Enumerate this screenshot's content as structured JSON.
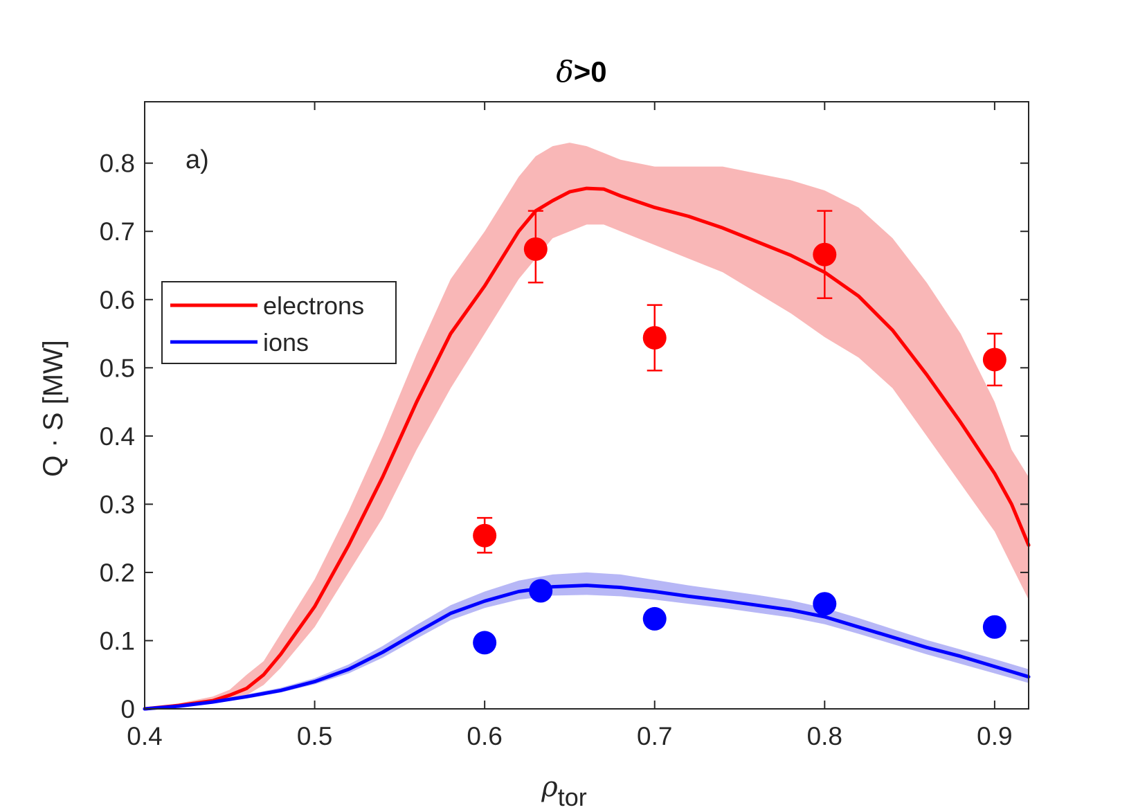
{
  "chart_data": {
    "type": "line",
    "title_symbol": "δ",
    "title_rest": ">0",
    "panel_label": "a)",
    "xlabel_main": "ρ",
    "xlabel_sub": "tor",
    "ylabel": "Q · S [MW]",
    "xlim": [
      0.4,
      0.92
    ],
    "ylim": [
      0,
      0.89
    ],
    "xticks": [
      0.4,
      0.5,
      0.6,
      0.7,
      0.8,
      0.9
    ],
    "xtick_labels": [
      "0.4",
      "0.5",
      "0.6",
      "0.7",
      "0.8",
      "0.9"
    ],
    "yticks": [
      0,
      0.1,
      0.2,
      0.3,
      0.4,
      0.5,
      0.6,
      0.7,
      0.8
    ],
    "ytick_labels": [
      "0",
      "0.1",
      "0.2",
      "0.3",
      "0.4",
      "0.5",
      "0.6",
      "0.7",
      "0.8"
    ],
    "legend_location": "upper-left",
    "series": [
      {
        "name": "electrons",
        "color": "#ff0000",
        "band_color": "#f8aaaa",
        "x": [
          0.4,
          0.42,
          0.44,
          0.45,
          0.46,
          0.47,
          0.48,
          0.5,
          0.52,
          0.54,
          0.56,
          0.58,
          0.6,
          0.62,
          0.63,
          0.64,
          0.65,
          0.66,
          0.67,
          0.68,
          0.7,
          0.72,
          0.74,
          0.76,
          0.78,
          0.8,
          0.82,
          0.84,
          0.86,
          0.88,
          0.9,
          0.91,
          0.92
        ],
        "values": [
          0.0,
          0.005,
          0.012,
          0.02,
          0.03,
          0.05,
          0.08,
          0.15,
          0.24,
          0.34,
          0.45,
          0.55,
          0.62,
          0.7,
          0.73,
          0.745,
          0.758,
          0.763,
          0.762,
          0.752,
          0.735,
          0.722,
          0.705,
          0.685,
          0.665,
          0.64,
          0.605,
          0.555,
          0.49,
          0.42,
          0.345,
          0.3,
          0.24
        ],
        "lower": [
          0.0,
          0.003,
          0.008,
          0.014,
          0.02,
          0.035,
          0.06,
          0.12,
          0.2,
          0.28,
          0.38,
          0.47,
          0.55,
          0.63,
          0.66,
          0.69,
          0.7,
          0.71,
          0.71,
          0.7,
          0.68,
          0.66,
          0.64,
          0.61,
          0.58,
          0.545,
          0.515,
          0.47,
          0.4,
          0.33,
          0.26,
          0.21,
          0.16
        ],
        "upper": [
          0.0,
          0.008,
          0.018,
          0.028,
          0.05,
          0.07,
          0.11,
          0.19,
          0.29,
          0.4,
          0.52,
          0.63,
          0.7,
          0.78,
          0.81,
          0.825,
          0.83,
          0.825,
          0.815,
          0.805,
          0.795,
          0.795,
          0.795,
          0.785,
          0.775,
          0.76,
          0.735,
          0.69,
          0.625,
          0.55,
          0.45,
          0.38,
          0.34
        ]
      },
      {
        "name": "ions",
        "color": "#0000ff",
        "band_color": "#aaaaf5",
        "x": [
          0.4,
          0.42,
          0.44,
          0.46,
          0.48,
          0.5,
          0.52,
          0.54,
          0.56,
          0.58,
          0.6,
          0.62,
          0.64,
          0.66,
          0.68,
          0.7,
          0.72,
          0.74,
          0.76,
          0.78,
          0.8,
          0.82,
          0.84,
          0.86,
          0.88,
          0.9,
          0.92
        ],
        "values": [
          0.0,
          0.004,
          0.01,
          0.018,
          0.027,
          0.04,
          0.058,
          0.083,
          0.112,
          0.14,
          0.158,
          0.172,
          0.179,
          0.181,
          0.178,
          0.172,
          0.165,
          0.159,
          0.152,
          0.145,
          0.135,
          0.12,
          0.105,
          0.09,
          0.077,
          0.062,
          0.047
        ],
        "lower": [
          0.0,
          0.003,
          0.008,
          0.015,
          0.024,
          0.036,
          0.052,
          0.075,
          0.103,
          0.13,
          0.148,
          0.16,
          0.166,
          0.167,
          0.165,
          0.16,
          0.154,
          0.148,
          0.141,
          0.134,
          0.124,
          0.11,
          0.095,
          0.08,
          0.066,
          0.052,
          0.038
        ],
        "upper": [
          0.0,
          0.005,
          0.012,
          0.021,
          0.031,
          0.045,
          0.065,
          0.092,
          0.123,
          0.152,
          0.172,
          0.188,
          0.197,
          0.2,
          0.197,
          0.189,
          0.181,
          0.174,
          0.167,
          0.159,
          0.148,
          0.133,
          0.117,
          0.101,
          0.087,
          0.073,
          0.058
        ]
      }
    ],
    "points": [
      {
        "series": "electrons",
        "color": "#ff0000",
        "x": 0.6,
        "y": 0.254,
        "err_low": 0.229,
        "err_high": 0.28
      },
      {
        "series": "electrons",
        "color": "#ff0000",
        "x": 0.63,
        "y": 0.674,
        "err_low": 0.625,
        "err_high": 0.73
      },
      {
        "series": "electrons",
        "color": "#ff0000",
        "x": 0.7,
        "y": 0.544,
        "err_low": 0.496,
        "err_high": 0.592
      },
      {
        "series": "electrons",
        "color": "#ff0000",
        "x": 0.8,
        "y": 0.666,
        "err_low": 0.602,
        "err_high": 0.73
      },
      {
        "series": "electrons",
        "color": "#ff0000",
        "x": 0.9,
        "y": 0.512,
        "err_low": 0.474,
        "err_high": 0.55
      },
      {
        "series": "ions",
        "color": "#0000ff",
        "x": 0.6,
        "y": 0.097,
        "err_low": 0.097,
        "err_high": 0.097
      },
      {
        "series": "ions",
        "color": "#0000ff",
        "x": 0.633,
        "y": 0.173,
        "err_low": 0.173,
        "err_high": 0.173
      },
      {
        "series": "ions",
        "color": "#0000ff",
        "x": 0.7,
        "y": 0.132,
        "err_low": 0.132,
        "err_high": 0.132
      },
      {
        "series": "ions",
        "color": "#0000ff",
        "x": 0.8,
        "y": 0.154,
        "err_low": 0.142,
        "err_high": 0.166
      },
      {
        "series": "ions",
        "color": "#0000ff",
        "x": 0.9,
        "y": 0.12,
        "err_low": 0.12,
        "err_high": 0.12
      }
    ]
  }
}
